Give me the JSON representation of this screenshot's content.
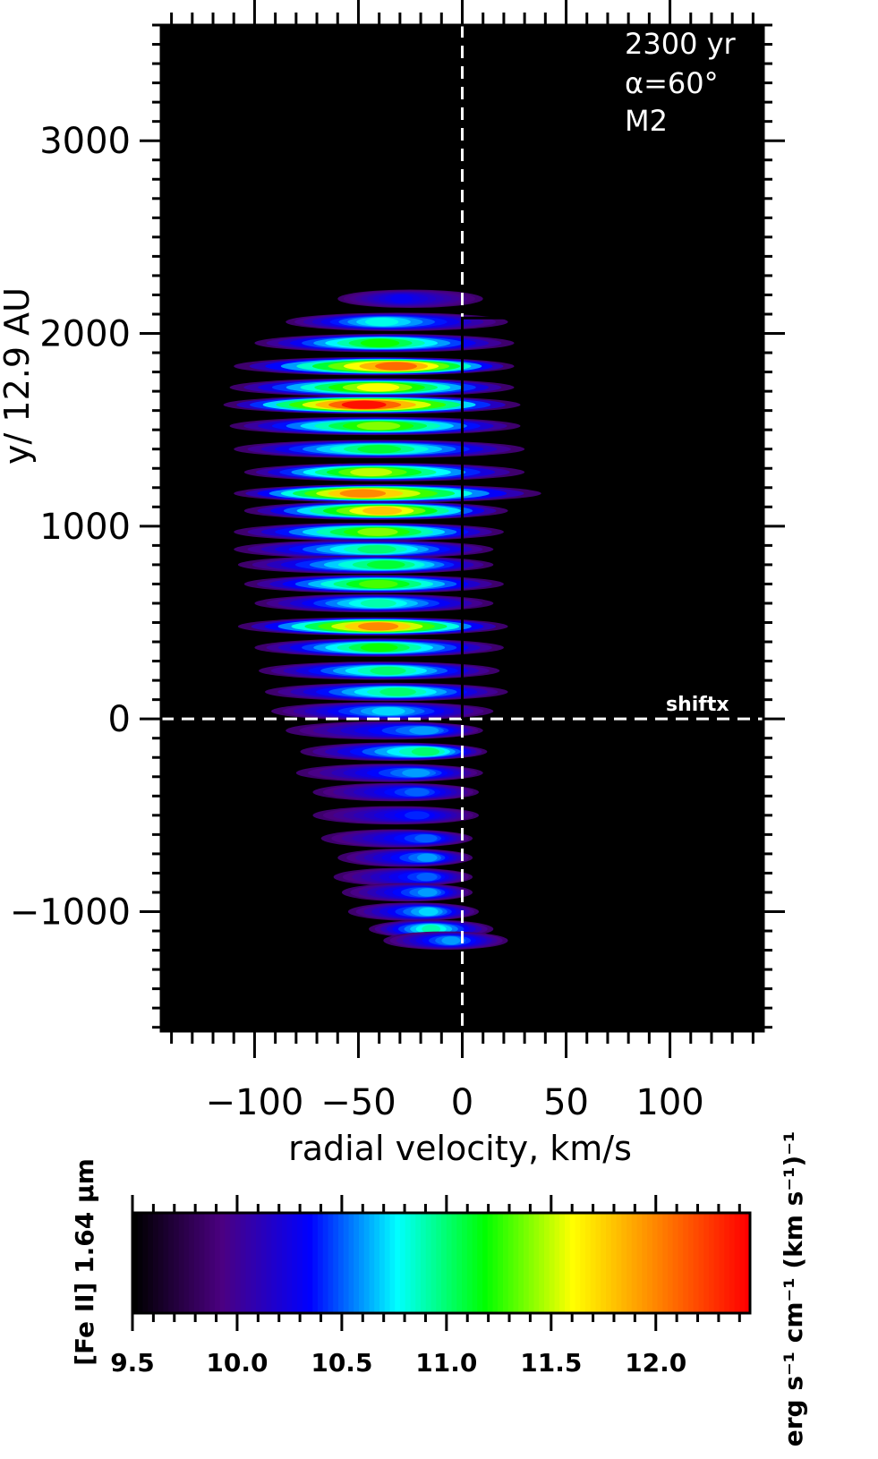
{
  "chart_data": {
    "type": "heatmap",
    "xlabel": "radial velocity, km/s",
    "ylabel": "y/ 12.9 AU",
    "xlim": [
      -145,
      145
    ],
    "ylim": [
      -1620,
      3600
    ],
    "xticks": [
      -100,
      -50,
      0,
      50,
      100
    ],
    "xtick_labels": [
      "−100",
      "−50",
      "0",
      "50",
      "100"
    ],
    "yticks": [
      -1000,
      0,
      1000,
      2000,
      3000
    ],
    "ytick_labels": [
      "−1000",
      "0",
      "1000",
      "2000",
      "3000"
    ],
    "background": "#000000",
    "annotations": {
      "time": "2300 yr",
      "angle": "α=60°",
      "model": "M2",
      "shift": "shiftx"
    },
    "reference_lines": {
      "vertical_dashed_x": 0,
      "horizontal_dashed_y": 0,
      "profile": [
        [
          0,
          0
        ],
        [
          0,
          2080
        ],
        [
          22,
          2080
        ]
      ]
    },
    "emission_rows": [
      {
        "y": 2180,
        "vmin": -60,
        "vmax": 10,
        "peak_v": -30,
        "peak": 10.3
      },
      {
        "y": 2060,
        "vmin": -85,
        "vmax": 22,
        "peak_v": -40,
        "peak": 10.8
      },
      {
        "y": 1950,
        "vmin": -100,
        "vmax": 25,
        "peak_v": -40,
        "peak": 11.2
      },
      {
        "y": 1830,
        "vmin": -110,
        "vmax": 25,
        "peak_v": -30,
        "peak": 12.1
      },
      {
        "y": 1720,
        "vmin": -112,
        "vmax": 25,
        "peak_v": -40,
        "peak": 11.6
      },
      {
        "y": 1630,
        "vmin": -115,
        "vmax": 28,
        "peak_v": -48,
        "peak": 12.4
      },
      {
        "y": 1520,
        "vmin": -112,
        "vmax": 28,
        "peak_v": -40,
        "peak": 11.4
      },
      {
        "y": 1400,
        "vmin": -110,
        "vmax": 30,
        "peak_v": -40,
        "peak": 11.1
      },
      {
        "y": 1280,
        "vmin": -105,
        "vmax": 30,
        "peak_v": -45,
        "peak": 11.5
      },
      {
        "y": 1170,
        "vmin": -110,
        "vmax": 38,
        "peak_v": -50,
        "peak": 12.0
      },
      {
        "y": 1080,
        "vmin": -105,
        "vmax": 22,
        "peak_v": -38,
        "peak": 11.8
      },
      {
        "y": 970,
        "vmin": -110,
        "vmax": 20,
        "peak_v": -40,
        "peak": 11.4
      },
      {
        "y": 880,
        "vmin": -110,
        "vmax": 15,
        "peak_v": -40,
        "peak": 11.0
      },
      {
        "y": 800,
        "vmin": -108,
        "vmax": 15,
        "peak_v": -35,
        "peak": 11.1
      },
      {
        "y": 700,
        "vmin": -105,
        "vmax": 20,
        "peak_v": -40,
        "peak": 11.3
      },
      {
        "y": 600,
        "vmin": -100,
        "vmax": 15,
        "peak_v": -40,
        "peak": 10.9
      },
      {
        "y": 480,
        "vmin": -108,
        "vmax": 22,
        "peak_v": -40,
        "peak": 12.0
      },
      {
        "y": 370,
        "vmin": -100,
        "vmax": 20,
        "peak_v": -40,
        "peak": 11.2
      },
      {
        "y": 250,
        "vmin": -98,
        "vmax": 18,
        "peak_v": -35,
        "peak": 11.0
      },
      {
        "y": 140,
        "vmin": -95,
        "vmax": 22,
        "peak_v": -30,
        "peak": 11.0
      },
      {
        "y": 40,
        "vmin": -92,
        "vmax": 15,
        "peak_v": -35,
        "peak": 10.7
      },
      {
        "y": -60,
        "vmin": -85,
        "vmax": 10,
        "peak_v": -15,
        "peak": 10.6
      },
      {
        "y": -170,
        "vmin": -78,
        "vmax": 12,
        "peak_v": -15,
        "peak": 11.0
      },
      {
        "y": -280,
        "vmin": -80,
        "vmax": 10,
        "peak_v": -20,
        "peak": 10.6
      },
      {
        "y": -380,
        "vmin": -72,
        "vmax": 8,
        "peak_v": -20,
        "peak": 10.5
      },
      {
        "y": -500,
        "vmin": -72,
        "vmax": 8,
        "peak_v": -20,
        "peak": 10.4
      },
      {
        "y": -620,
        "vmin": -68,
        "vmax": 5,
        "peak_v": -15,
        "peak": 10.5
      },
      {
        "y": -720,
        "vmin": -60,
        "vmax": 5,
        "peak_v": -15,
        "peak": 10.6
      },
      {
        "y": -820,
        "vmin": -62,
        "vmax": 5,
        "peak_v": -15,
        "peak": 10.5
      },
      {
        "y": -900,
        "vmin": -58,
        "vmax": 5,
        "peak_v": -15,
        "peak": 10.6
      },
      {
        "y": -1000,
        "vmin": -55,
        "vmax": 8,
        "peak_v": -15,
        "peak": 10.7
      },
      {
        "y": -1090,
        "vmin": -45,
        "vmax": 15,
        "peak_v": -15,
        "peak": 10.9
      },
      {
        "y": -1150,
        "vmin": -38,
        "vmax": 22,
        "peak_v": -5,
        "peak": 10.6
      }
    ],
    "colorbar": {
      "label": "[Fe II] 1.64 μm",
      "units": "erg s⁻¹ cm⁻¹ (km s⁻¹)⁻¹",
      "min": 9.5,
      "max": 12.45,
      "ticks": [
        9.5,
        10.0,
        10.5,
        11.0,
        11.5,
        12.0
      ],
      "tick_labels": [
        "9.5",
        "10.0",
        "10.5",
        "11.0",
        "11.5",
        "12.0"
      ],
      "colormap": [
        "#000000",
        "#4b0082",
        "#0000ff",
        "#00ffff",
        "#00ff00",
        "#ffff00",
        "#ff8000",
        "#ff0000"
      ]
    }
  }
}
